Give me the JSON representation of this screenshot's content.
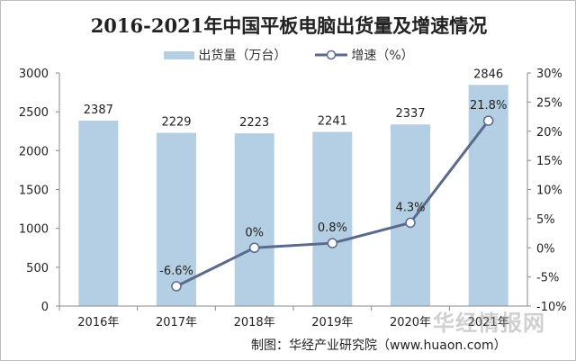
{
  "chart_data": {
    "type": "bar+line",
    "title": "2016-2021年中国平板电脑出货量及增速情况",
    "categories": [
      "2016年",
      "2017年",
      "2018年",
      "2019年",
      "2020年",
      "2021年"
    ],
    "series": [
      {
        "name": "出货量（万台）",
        "type": "bar",
        "axis": "left",
        "values": [
          2387,
          2229,
          2223,
          2241,
          2337,
          2846
        ],
        "labels": [
          "2387",
          "2229",
          "2223",
          "2241",
          "2337",
          "2846"
        ],
        "color": "#b4cfe3"
      },
      {
        "name": "增速（%）",
        "type": "line",
        "axis": "right",
        "values": [
          null,
          -6.6,
          0,
          0.8,
          4.3,
          21.8
        ],
        "labels": [
          "",
          "-6.6%",
          "0%",
          "0.8%",
          "4.3%",
          "21.8%"
        ],
        "color": "#5b6a8c"
      }
    ],
    "left_axis": {
      "ylim": [
        0,
        3000
      ],
      "ticks": [
        "0",
        "500",
        "1000",
        "1500",
        "2000",
        "2500",
        "3000"
      ]
    },
    "right_axis": {
      "ylim": [
        -10,
        30
      ],
      "ticks": [
        "-10%",
        "-5%",
        "0%",
        "5%",
        "10%",
        "15%",
        "20%",
        "25%",
        "30%"
      ]
    },
    "legend": "top",
    "grid": false
  },
  "source": "制图：华经产业研究院（www.huaon.com）",
  "watermark": "华经情报网"
}
